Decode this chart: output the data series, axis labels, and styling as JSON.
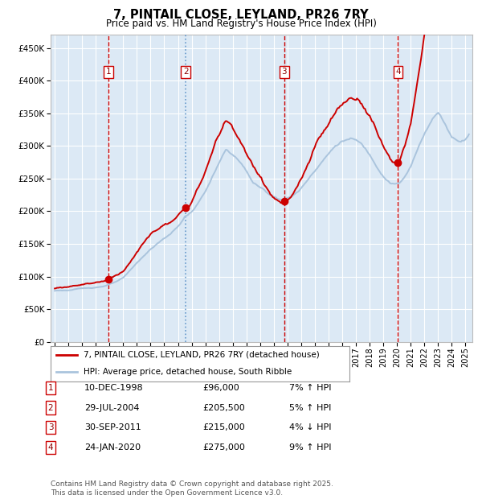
{
  "title": "7, PINTAIL CLOSE, LEYLAND, PR26 7RY",
  "subtitle": "Price paid vs. HM Land Registry's House Price Index (HPI)",
  "transactions": [
    {
      "num": 1,
      "date": "10-DEC-1998",
      "price": 96000,
      "year": 1998.94,
      "pct": "7%",
      "dir": "↑"
    },
    {
      "num": 2,
      "date": "29-JUL-2004",
      "price": 205500,
      "year": 2004.57,
      "pct": "5%",
      "dir": "↑"
    },
    {
      "num": 3,
      "date": "30-SEP-2011",
      "price": 215000,
      "year": 2011.75,
      "pct": "4%",
      "dir": "↓"
    },
    {
      "num": 4,
      "date": "24-JAN-2020",
      "price": 275000,
      "year": 2020.07,
      "pct": "9%",
      "dir": "↑"
    }
  ],
  "ylabel_ticks": [
    0,
    50000,
    100000,
    150000,
    200000,
    250000,
    300000,
    350000,
    400000,
    450000
  ],
  "ylabel_labels": [
    "£0",
    "£50K",
    "£100K",
    "£150K",
    "£200K",
    "£250K",
    "£300K",
    "£350K",
    "£400K",
    "£450K"
  ],
  "xmin": 1994.7,
  "xmax": 2025.5,
  "ymin": 0,
  "ymax": 470000,
  "hpi_color": "#aac4dd",
  "price_color": "#cc0000",
  "dot_color": "#cc0000",
  "plot_bg_color": "#dce9f5",
  "grid_color": "#ffffff",
  "vline_dashed_color": "#cc0000",
  "vline_dotted_color": "#6699cc",
  "legend_line1": "7, PINTAIL CLOSE, LEYLAND, PR26 7RY (detached house)",
  "legend_line2": "HPI: Average price, detached house, South Ribble",
  "footnote": "Contains HM Land Registry data © Crown copyright and database right 2025.\nThis data is licensed under the Open Government Licence v3.0."
}
